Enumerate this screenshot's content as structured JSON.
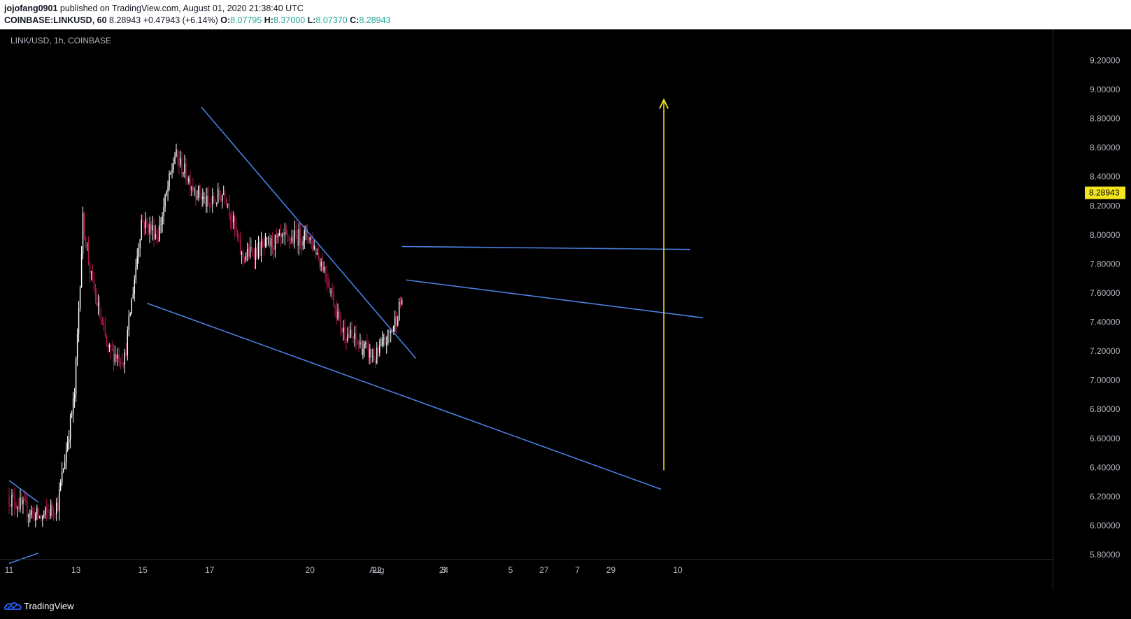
{
  "header": {
    "author": "jojofang0901",
    "published": "published on TradingView.com, August 01, 2020 21:38:40 UTC",
    "symbol": "COINBASE:LINKUSD, 60",
    "last": "8.28943",
    "change": "+0.47943 (+6.14%)",
    "o_label": "O:",
    "o_value": "8.07795",
    "h_label": "H:",
    "h_value": "8.37000",
    "l_label": "L:",
    "l_value": "8.07370",
    "c_label": "C:",
    "c_value": "8.28943"
  },
  "footer": {
    "brand": "TradingView",
    "logo_icon": "tradingview-cloud-icon"
  },
  "colors": {
    "background": "#000000",
    "candle_up": "#ffffff",
    "candle_down": "#b01c4a",
    "trendline": "#4a7fe0",
    "target_arrow": "#f5e51f",
    "price_tag": "#f5e51f"
  },
  "chart_data": {
    "type": "candlestick",
    "instrument": "LINK/USD, 1h, COINBASE",
    "current_price": 8.28943,
    "current_price_label": "8.28943",
    "y_ticks": [
      "9.20000",
      "9.00000",
      "8.80000",
      "8.60000",
      "8.40000",
      "8.20000",
      "8.00000",
      "7.80000",
      "7.60000",
      "7.40000",
      "7.20000",
      "7.00000",
      "6.80000",
      "6.60000",
      "6.40000",
      "6.20000",
      "6.00000",
      "5.80000"
    ],
    "x_ticks": [
      "11",
      "13",
      "15",
      "17",
      "20",
      "22",
      "24",
      "27",
      "29",
      "Aug",
      "3",
      "5",
      "7",
      "10"
    ],
    "grid": false,
    "price_path": [
      [
        "Jul 11 00:00",
        6.2
      ],
      [
        "Jul 11 12:00",
        6.12
      ],
      [
        "Jul 12 00:00",
        6.05
      ],
      [
        "Jul 12 12:00",
        6.15
      ],
      [
        "Jul 13 00:00",
        6.9
      ],
      [
        "Jul 13 06:00",
        8.1
      ],
      [
        "Jul 13 12:00",
        7.7
      ],
      [
        "Jul 14 00:00",
        7.2
      ],
      [
        "Jul 14 12:00",
        7.15
      ],
      [
        "Jul 15 00:00",
        8.1
      ],
      [
        "Jul 15 12:00",
        8.0
      ],
      [
        "Jul 16 00:00",
        8.55
      ],
      [
        "Jul 16 12:00",
        8.35
      ],
      [
        "Jul 17 00:00",
        8.2
      ],
      [
        "Jul 17 12:00",
        8.3
      ],
      [
        "Jul 18 00:00",
        7.85
      ],
      [
        "Jul 19 00:00",
        7.95
      ],
      [
        "Jul 20 00:00",
        8.0
      ],
      [
        "Jul 20 12:00",
        7.75
      ],
      [
        "Jul 21 00:00",
        7.35
      ],
      [
        "Jul 21 12:00",
        7.25
      ],
      [
        "Jul 22 00:00",
        7.15
      ],
      [
        "Jul 22 12:00",
        7.35
      ],
      [
        "Jul 23 00:00",
        7.7
      ],
      [
        "Jul 24 00:00",
        7.95
      ],
      [
        "Jul 24 12:00",
        7.75
      ],
      [
        "Jul 25 00:00",
        7.6
      ],
      [
        "Jul 26 00:00",
        7.7
      ],
      [
        "Jul 26 06:00",
        7.9
      ],
      [
        "Jul 26 12:00",
        7.45
      ],
      [
        "Jul 27 00:00",
        7.35
      ],
      [
        "Jul 27 12:00",
        6.75
      ],
      [
        "Jul 28 00:00",
        7.15
      ],
      [
        "Jul 28 12:00",
        7.25
      ],
      [
        "Jul 29 00:00",
        7.35
      ],
      [
        "Jul 29 12:00",
        7.2
      ],
      [
        "Jul 30 00:00",
        7.1
      ],
      [
        "Jul 30 12:00",
        7.2
      ],
      [
        "Jul 31 00:00",
        7.55
      ],
      [
        "Jul 31 06:00",
        7.8
      ],
      [
        "Jul 31 12:00",
        7.7
      ],
      [
        "Aug 1 00:00",
        7.8
      ],
      [
        "Aug 1 06:00",
        7.85
      ],
      [
        "Aug 1 12:00",
        7.8
      ],
      [
        "Aug 1 18:00",
        8.29
      ]
    ],
    "range_low": 5.95,
    "range_high": 8.9,
    "drawings": {
      "descending_channel": {
        "upper": [
          [
            "Jul 16 18:00",
            8.88
          ],
          [
            "Aug 2 04:00",
            7.15
          ]
        ],
        "lower": [
          [
            "Jul 15 03:00",
            7.53
          ],
          [
            "Jul 30 12:00",
            6.25
          ]
        ]
      },
      "early_wedge": {
        "upper": [
          [
            "Jul 11 00:00",
            6.31
          ],
          [
            "Jul 11 21:00",
            6.16
          ]
        ],
        "lower": [
          [
            "Jul 11 00:00",
            5.74
          ],
          [
            "Jul 11 21:00",
            5.81
          ]
        ]
      },
      "breakout_flag": {
        "upper": [
          [
            "Jul 31 09:00",
            7.9
          ],
          [
            "Aug 1 18:00",
            7.92
          ]
        ],
        "lower": [
          [
            "Jul 31 18:00",
            7.43
          ],
          [
            "Aug 1 21:00",
            7.69
          ]
        ]
      },
      "target_arrow": [
        [
          "Jul 30 14:00",
          6.38
        ],
        [
          "Aug 9 14:00",
          8.93
        ]
      ]
    }
  }
}
